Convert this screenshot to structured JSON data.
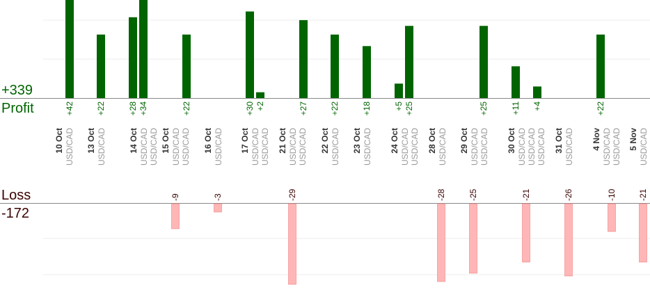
{
  "chart_data": {
    "type": "bar",
    "profit": {
      "total": "+339",
      "label": "Profit",
      "color": "#006400",
      "bars": [
        {
          "date": "10 Oct",
          "pair": "USD/CAD",
          "value": 42,
          "label": "+42"
        },
        {
          "date": "13 Oct",
          "pair": "USD/CAD",
          "value": 22,
          "label": "+22"
        },
        {
          "date": "14 Oct",
          "pair": "USD/CAD",
          "value": 28,
          "label": "+28"
        },
        {
          "date": "14 Oct",
          "pair": "USD/CAD",
          "value": 34,
          "label": "+34"
        },
        {
          "date": "15 Oct",
          "pair": "USD/CAD",
          "value": 22,
          "label": "+22"
        },
        {
          "date": "17 Oct",
          "pair": "USD/CAD",
          "value": 30,
          "label": "+30"
        },
        {
          "date": "17 Oct",
          "pair": "USD/CAD",
          "value": 2,
          "label": "+2"
        },
        {
          "date": "21 Oct",
          "pair": "USD/CAD",
          "value": 27,
          "label": "+27"
        },
        {
          "date": "22 Oct",
          "pair": "USD/CAD",
          "value": 22,
          "label": "+22"
        },
        {
          "date": "23 Oct",
          "pair": "USD/CAD",
          "value": 18,
          "label": "+18"
        },
        {
          "date": "24 Oct",
          "pair": "USD/CAD",
          "value": 5,
          "label": "+5"
        },
        {
          "date": "24 Oct",
          "pair": "USD/CAD",
          "value": 25,
          "label": "+25"
        },
        {
          "date": "29 Oct",
          "pair": "USD/CAD",
          "value": 25,
          "label": "+25"
        },
        {
          "date": "30 Oct",
          "pair": "USD/CAD",
          "value": 11,
          "label": "+11"
        },
        {
          "date": "30 Oct",
          "pair": "USD/CAD",
          "value": 4,
          "label": "+4"
        },
        {
          "date": "4 Nov",
          "pair": "USD/CAD",
          "value": 22,
          "label": "+22"
        }
      ]
    },
    "loss": {
      "total": "-172",
      "label": "Loss",
      "color": "#ffb6b6",
      "bars": [
        {
          "date": "15 Oct",
          "pair": "USD/CAD",
          "value": -9,
          "label": "-9"
        },
        {
          "date": "16 Oct",
          "pair": "USD/CAD",
          "value": -3,
          "label": "-3"
        },
        {
          "date": "21 Oct",
          "pair": "USD/CAD",
          "value": -29,
          "label": "-29"
        },
        {
          "date": "28 Oct",
          "pair": "USD/CAD",
          "value": -28,
          "label": "-28"
        },
        {
          "date": "29 Oct",
          "pair": "USD/CAD",
          "value": -25,
          "label": "-25"
        },
        {
          "date": "30 Oct",
          "pair": "USD/CAD",
          "value": -21,
          "label": "-21"
        },
        {
          "date": "31 Oct",
          "pair": "USD/CAD",
          "value": -26,
          "label": "-26"
        },
        {
          "date": "4 Nov",
          "pair": "USD/CAD",
          "value": -10,
          "label": "-10"
        },
        {
          "date": "5 Nov",
          "pair": "USD/CAD",
          "value": -21,
          "label": "-21"
        }
      ]
    },
    "dates": [
      "10 Oct",
      "13 Oct",
      "14 Oct",
      "15 Oct",
      "16 Oct",
      "17 Oct",
      "21 Oct",
      "22 Oct",
      "23 Oct",
      "24 Oct",
      "28 Oct",
      "29 Oct",
      "30 Oct",
      "31 Oct",
      "4 Nov",
      "5 Nov"
    ],
    "pair": "USD/CAD",
    "grid": true,
    "axis_labels_shown": false
  }
}
